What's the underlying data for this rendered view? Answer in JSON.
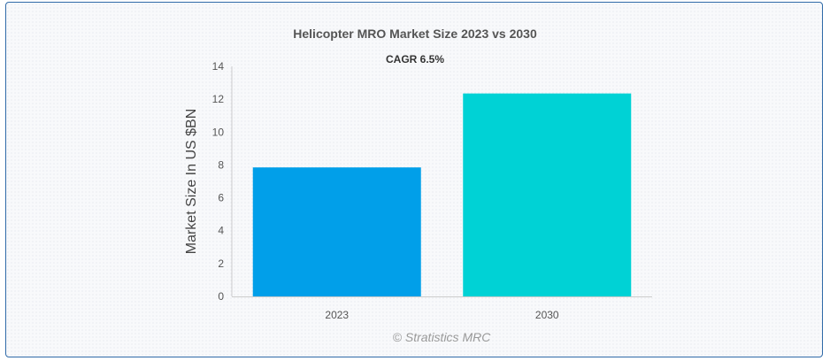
{
  "chart_data": {
    "type": "bar",
    "title": "Helicopter MRO Market Size 2023 vs 2030",
    "subtitle": "CAGR 6.5%",
    "categories": [
      "2023",
      "2030"
    ],
    "values": [
      7.85,
      12.35
    ],
    "colors": [
      "#019fe9",
      "#00d2d5"
    ],
    "xlabel": "",
    "ylabel": "Market Size In US $BN",
    "ylim": [
      0,
      14
    ],
    "yticks": [
      "0",
      "2",
      "4",
      "6",
      "8",
      "10",
      "12",
      "14"
    ],
    "grid": false,
    "legend": "none"
  },
  "credit": "© Stratistics MRC"
}
